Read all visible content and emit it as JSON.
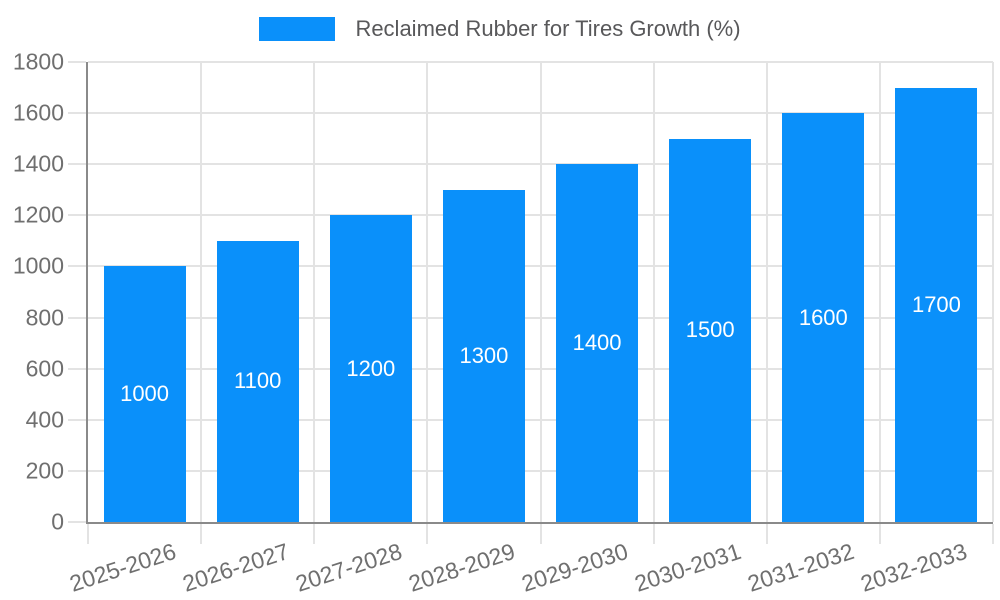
{
  "legend": {
    "label": "Reclaimed Rubber for Tires Growth (%)"
  },
  "colors": {
    "bar": "#0A90FA",
    "grid": "#E3E3E3",
    "axis": "#8A8A8A",
    "tick_text": "#6F6F6F",
    "legend_text": "#58585A",
    "value_text": "#FFFFFF",
    "background": "#FFFFFF"
  },
  "chart_data": {
    "type": "bar",
    "title": "Reclaimed Rubber for Tires Growth (%)",
    "categories": [
      "2025-2026",
      "2026-2027",
      "2027-2028",
      "2028-2029",
      "2029-2030",
      "2030-2031",
      "2031-2032",
      "2032-2033"
    ],
    "values": [
      1000,
      1100,
      1200,
      1300,
      1400,
      1500,
      1600,
      1700
    ],
    "series_name": "Reclaimed Rubber for Tires Growth (%)",
    "xlabel": "",
    "ylabel": "",
    "ylim": [
      0,
      1800
    ],
    "yticks": [
      0,
      200,
      400,
      600,
      800,
      1000,
      1200,
      1400,
      1600,
      1800
    ],
    "grid": true,
    "legend_position": "top-center",
    "bar_value_labels": "inside-center",
    "x_tick_label_rotation_deg": -18
  }
}
